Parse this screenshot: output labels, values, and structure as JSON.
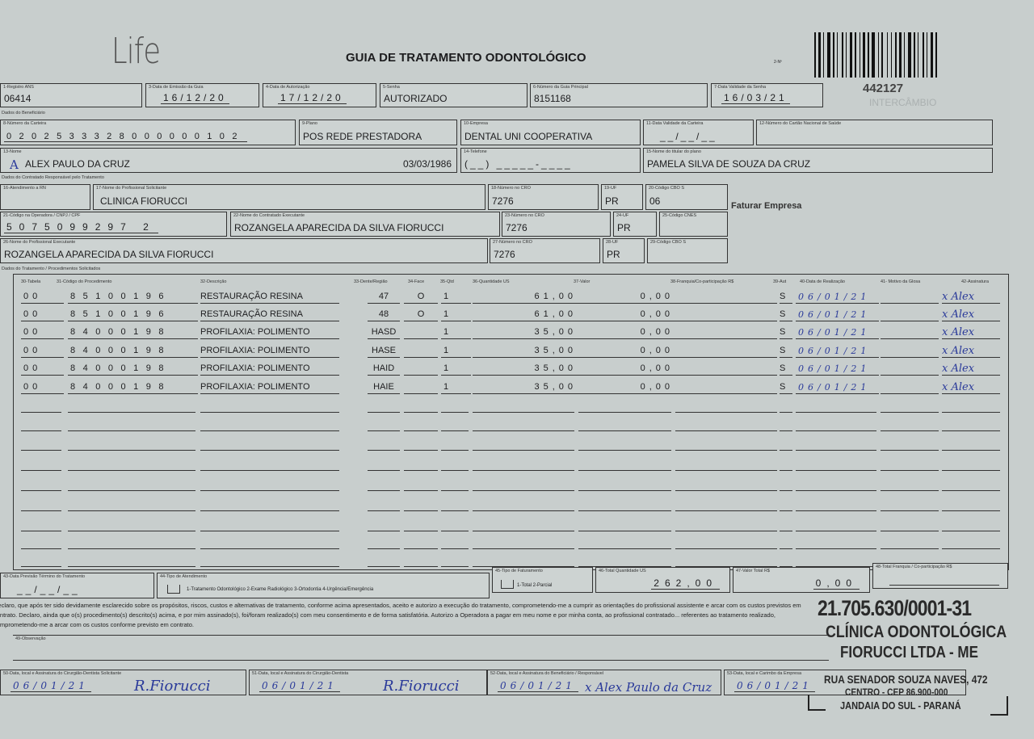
{
  "header": {
    "logo": "Life",
    "title": "GUIA DE TRATAMENTO ODONTOLÓGICO",
    "guide_no_label": "2-Nº",
    "number": "442127",
    "watermark": "INTERCÂMBIO"
  },
  "row1": {
    "ans": {
      "label": "1-Registro ANS",
      "value": "06414"
    },
    "issue_date": {
      "label": "3-Data de Emissão da Guia",
      "value": "16/12/20"
    },
    "auth_date": {
      "label": "4-Data de Autorização",
      "value": "17/12/20"
    },
    "password": {
      "label": "5-Senha",
      "value": "AUTORIZADO"
    },
    "main_guide": {
      "label": "6-Número da Guia Principal",
      "value": "8151168"
    },
    "password_validity": {
      "label": "7-Data Validade da Senha",
      "value": "16/03/21"
    }
  },
  "beneficiary": {
    "section": "Dados do Beneficiário",
    "card": {
      "label": "8-Número da Carteira",
      "value": "0202533328000000102"
    },
    "plan": {
      "label": "9-Plano",
      "value": "POS REDE PRESTADORA"
    },
    "company": {
      "label": "10-Empresa",
      "value": "DENTAL UNI  COOPERATIVA"
    },
    "card_validity": {
      "label": "11-Data Validade da Carteira",
      "value": "__/__/__"
    },
    "cns": {
      "label": "12-Número do Cartão Nacional de Saúde",
      "value": ""
    },
    "name": {
      "label": "13-Nome",
      "value": "ALEX PAULO DA CRUZ",
      "birth": "03/03/1986"
    },
    "phone": {
      "label": "14-Telefone",
      "value": "(__) _____-____"
    },
    "holder": {
      "label": "15-Nome do titular do plano",
      "value": "PAMELA SILVA DE SOUZA DA CRUZ"
    }
  },
  "contractor": {
    "section": "Dados do Contratado Responsável pelo Tratamento",
    "rn": {
      "label": "16-Atendimento a RN",
      "value": ""
    },
    "requester": {
      "label": "17-Nome do Profissional Solicitante",
      "value": "CLINICA FIORUCCI"
    },
    "cro1": {
      "label": "18-Número no CRO",
      "value": "7276"
    },
    "uf1": {
      "label": "19-UF",
      "value": "PR"
    },
    "cbo1": {
      "label": "20-Código CBO S",
      "value": "06"
    },
    "bill_note": "Faturar Empresa",
    "code": {
      "label": "21-Código na Operadora / CNPJ / CPF",
      "value": "5075099297 2"
    },
    "executor_contract": {
      "label": "22-Nome do Contratado Executante",
      "value": "ROZANGELA APARECIDA DA SILVA FIORUCCI"
    },
    "cro2": {
      "label": "23-Número no CRO",
      "value": "7276"
    },
    "uf2": {
      "label": "24-UF",
      "value": "PR"
    },
    "cnes": {
      "label": "25-Código CNES",
      "value": ""
    },
    "executor": {
      "label": "26-Nome do Profissional Executante",
      "value": "ROZANGELA APARECIDA DA SILVA FIORUCCI"
    },
    "cro3": {
      "label": "27-Número no CRO",
      "value": "7276"
    },
    "uf3": {
      "label": "28-UF",
      "value": "PR"
    },
    "cbo3": {
      "label": "29-Código CBO S",
      "value": ""
    }
  },
  "procedures": {
    "section": "Dados do Tratamento / Procedimentos Solicitados",
    "headers": [
      "30-Tabela",
      "31-Código do Procedimento",
      "32-Descrição",
      "33-Dente/Região",
      "34-Face",
      "35-Qtd",
      "36-Quantidade US",
      "37-Valor",
      "38-Franquia/Co-participação R$",
      "39-Aut",
      "40-Data de Realização",
      "41- Motivo da Glosa",
      "42-Assinatura"
    ],
    "rows": [
      {
        "table": "00",
        "code": "85100196",
        "desc": "RESTAURAÇÃO RESINA",
        "tooth": "47",
        "face": "O",
        "qty": "1",
        "us": "61,00",
        "value": "0,00",
        "franchise": "",
        "aut": "S",
        "date": "06/01/21",
        "gloss": "",
        "sign": "x Alex"
      },
      {
        "table": "00",
        "code": "85100196",
        "desc": "RESTAURAÇÃO RESINA",
        "tooth": "48",
        "face": "O",
        "qty": "1",
        "us": "61,00",
        "value": "0,00",
        "franchise": "",
        "aut": "S",
        "date": "06/01/21",
        "gloss": "",
        "sign": "x Alex"
      },
      {
        "table": "00",
        "code": "84000198",
        "desc": "PROFILAXIA: POLIMENTO",
        "tooth": "HASD",
        "face": "",
        "qty": "1",
        "us": "35,00",
        "value": "0,00",
        "franchise": "",
        "aut": "S",
        "date": "06/01/21",
        "gloss": "",
        "sign": "x Alex"
      },
      {
        "table": "00",
        "code": "84000198",
        "desc": "PROFILAXIA: POLIMENTO",
        "tooth": "HASE",
        "face": "",
        "qty": "1",
        "us": "35,00",
        "value": "0,00",
        "franchise": "",
        "aut": "S",
        "date": "06/01/21",
        "gloss": "",
        "sign": "x Alex"
      },
      {
        "table": "00",
        "code": "84000198",
        "desc": "PROFILAXIA: POLIMENTO",
        "tooth": "HAID",
        "face": "",
        "qty": "1",
        "us": "35,00",
        "value": "0,00",
        "franchise": "",
        "aut": "S",
        "date": "06/01/21",
        "gloss": "",
        "sign": "x Alex"
      },
      {
        "table": "00",
        "code": "84000198",
        "desc": "PROFILAXIA: POLIMENTO",
        "tooth": "HAIE",
        "face": "",
        "qty": "1",
        "us": "35,00",
        "value": "0,00",
        "franchise": "",
        "aut": "S",
        "date": "06/01/21",
        "gloss": "",
        "sign": "x Alex"
      }
    ]
  },
  "totals": {
    "end_date": {
      "label": "43-Data Previsão Término do Tratamento",
      "value": "__/__/__"
    },
    "service_type": {
      "label": "44-Tipo de Atendimento",
      "options": "1-Tratamento Odontológico  2-Exame Radiológico  3-Ortodontia  4-Urgência/Emergência"
    },
    "billing_type": {
      "label": "45-Tipo de Faturamento",
      "options": "1-Total  2-Parcial"
    },
    "total_us": {
      "label": "46-Total Quantidade US",
      "value": "262,00"
    },
    "total_value": {
      "label": "47-Valor Total R$",
      "value": "0,00"
    },
    "total_franchise": {
      "label": "48-Total Franquia / Co-participação R$",
      "value": ""
    }
  },
  "declaration": "Declaro, que após ter sido devidamente esclarecido sobre os propósitos, riscos, custos e alternativas de tratamento, conforme acima apresentados, aceito e autorizo a execução do tratamento, comprometendo-me a cumprir as orientações do profissional assistente e arcar com os custos previstos em contrato. Declaro, ainda que o(s) procedimento(s) descrito(s) acima, e por mim assinado(s), foi/foram realizado(s) com meu consentimento e de forma satisfatória. Autorizo a Operadora a pagar em meu nome e por minha conta, ao profissional contratado... referentes ao tratamento realizado, comprometendo-me a arcar com os custos conforme previsto em contrato.",
  "observation_label": "49-Observação",
  "signatures": [
    {
      "label": "50-Data, local e Assinatura do Cirurgião-Dentista Solicitante",
      "date": "06/01/21",
      "sign": "R.Fiorucci"
    },
    {
      "label": "51-Data, local e Assinatura do Cirurgião-Dentista",
      "date": "06/01/21",
      "sign": "R.Fiorucci"
    },
    {
      "label": "52-Data, local e Assinatura do Beneficiário / Responsável",
      "date": "06/01/21",
      "sign": "x Alex Paulo da Cruz"
    },
    {
      "label": "53-Data, local e Carimbo da Empresa",
      "date": "06/01/21",
      "sign": ""
    }
  ],
  "stamp": {
    "cnpj": "21.705.630/0001-31",
    "line1": "CLÍNICA ODONTOLÓGICA",
    "line2": "FIORUCCI LTDA - ME",
    "line3": "RUA SENADOR SOUZA NAVES, 472",
    "line4": "CENTRO - CEP 86.900-000",
    "line5": "JANDAIA DO SUL - PARANÁ"
  },
  "colors": {
    "paper": "#c8cecd",
    "ink": "#1d1d1f",
    "pen": "#2a3a9a"
  }
}
